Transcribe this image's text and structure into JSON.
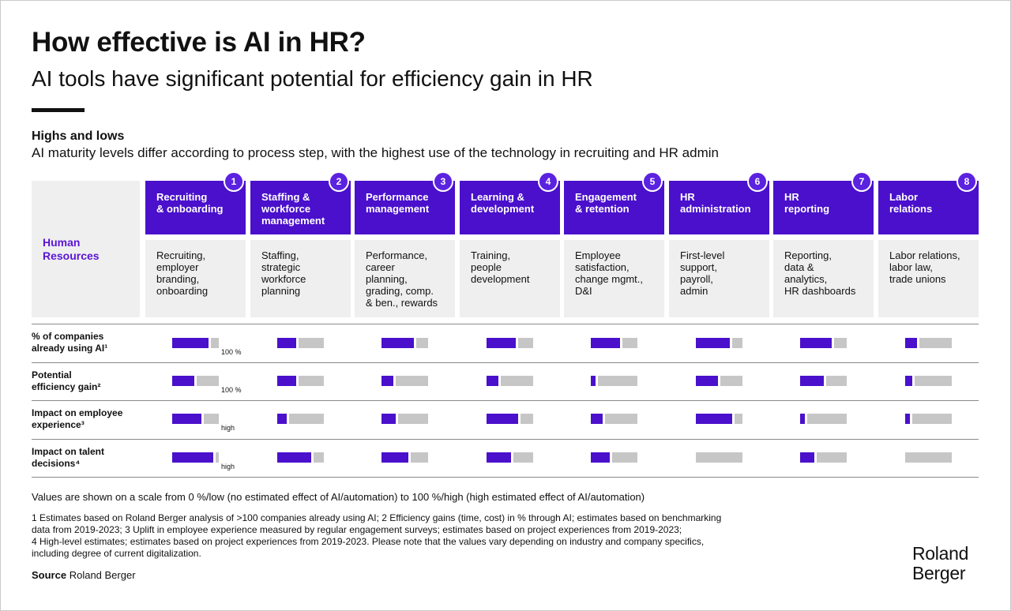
{
  "title": "How effective is AI in HR?",
  "subtitle": "AI tools have significant potential for efficiency gain in HR",
  "section": {
    "title": "Highs and lows",
    "subtitle": "AI maturity levels differ according to process step, with the highest use of the technology in recruiting and HR admin"
  },
  "row_header": "Human\nResources",
  "colors": {
    "fill": "#4a10cc",
    "track": "#c6c6c6",
    "badge": "#5b22e0"
  },
  "chart_data": {
    "type": "table",
    "categories": [
      {
        "num": "1",
        "name": "Recruiting\n& onboarding",
        "desc": "Recruiting,\nemployer\nbranding,\nonboarding"
      },
      {
        "num": "2",
        "name": "Staffing &\nworkforce\nmanagement",
        "desc": "Staffing,\nstrategic\nworkforce\nplanning"
      },
      {
        "num": "3",
        "name": "Performance\nmanagement",
        "desc": "Performance,\ncareer\nplanning,\ngrading, comp.\n& ben., rewards"
      },
      {
        "num": "4",
        "name": "Learning &\ndevelopment",
        "desc": "Training,\npeople\ndevelopment"
      },
      {
        "num": "5",
        "name": "Engagement\n& retention",
        "desc": "Employee\nsatisfaction,\nchange mgmt.,\nD&I"
      },
      {
        "num": "6",
        "name": "HR\nadministration",
        "desc": "First-level\nsupport,\npayroll,\nadmin"
      },
      {
        "num": "7",
        "name": "HR\nreporting",
        "desc": "Reporting,\ndata &\nanalytics,\nHR dashboards"
      },
      {
        "num": "8",
        "name": "Labor\nrelations",
        "desc": "Labor relations,\nlabor law,\ntrade unions"
      }
    ],
    "scale": [
      0,
      100
    ],
    "series": [
      {
        "name": "% of companies\nalready using AI¹",
        "scale_label": "100 %",
        "values": [
          78,
          40,
          70,
          63,
          63,
          73,
          68,
          25
        ]
      },
      {
        "name": "Potential\nefficiency gain²",
        "scale_label": "100 %",
        "values": [
          48,
          40,
          25,
          25,
          10,
          48,
          50,
          15
        ]
      },
      {
        "name": "Impact on employee\nexperience³",
        "scale_label": "high",
        "values": [
          63,
          20,
          30,
          68,
          25,
          78,
          10,
          10
        ]
      },
      {
        "name": "Impact on talent\ndecisions⁴",
        "scale_label": "high",
        "values": [
          88,
          73,
          58,
          53,
          40,
          0,
          30,
          0
        ]
      }
    ]
  },
  "note": "Values are shown on a scale from 0 %/low (no estimated effect of AI/automation) to 100 %/high (high estimated effect of AI/automation)",
  "footnotes": [
    "1  Estimates based on Roland Berger analysis of >100 companies already using AI; 2  Efficiency gains (time, cost) in % through AI; estimates based on benchmarking",
    "data from 2019-2023; 3  Uplift in employee experience measured by regular engagement surveys; estimates based on project experiences from 2019-2023;",
    "4  High-level estimates; estimates based on project experiences from 2019-2023. Please note that the values vary depending on industry and company specifics,",
    "including degree of current digitalization."
  ],
  "source": {
    "label": "Source",
    "text": "Roland Berger"
  },
  "logo": "Roland\nBerger"
}
